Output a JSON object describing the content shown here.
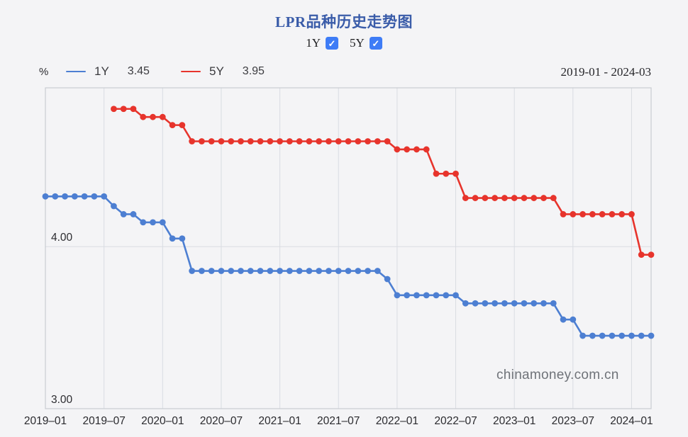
{
  "header": {
    "title": "LPR品种历史走势图",
    "series_toggles": [
      {
        "label": "1Y",
        "checked": true
      },
      {
        "label": "5Y",
        "checked": true
      }
    ]
  },
  "legend": {
    "unit": "%",
    "items": [
      {
        "name": "1Y",
        "value": "3.45",
        "color": "#4d7fd2"
      },
      {
        "name": "5Y",
        "value": "3.95",
        "color": "#e7342c"
      }
    ],
    "date_range": "2019-01 - 2024-03"
  },
  "watermark": "chinamoney.com.cn",
  "colors": {
    "background": "#f4f4f6",
    "plot_border": "#c8ccd2",
    "grid_line": "#d9dce2",
    "series_1y": "#4d7fd2",
    "series_5y": "#e7342c",
    "title": "#3a5ca9",
    "checkbox": "#3e7cf6",
    "axis_text": "#2a2a2e",
    "watermark_text": "#6f7379"
  },
  "chart_data": {
    "type": "line",
    "title": "LPR品种历史走势图",
    "unit": "%",
    "x_start": "2019-01",
    "x_end": "2024-03",
    "x_frequency": "monthly",
    "total_months": 63,
    "ylim": [
      3.0,
      4.98
    ],
    "grid": {
      "vertical_at_ticks": true,
      "horizontal_values": [
        4.0
      ]
    },
    "y_ticks": [
      {
        "value": 3.0,
        "label": "3.00"
      },
      {
        "value": 4.0,
        "label": "4.00"
      }
    ],
    "x_ticks": [
      {
        "index": 0,
        "label": "2019–01"
      },
      {
        "index": 6,
        "label": "2019–07"
      },
      {
        "index": 12,
        "label": "2020–01"
      },
      {
        "index": 18,
        "label": "2020–07"
      },
      {
        "index": 24,
        "label": "2021–01"
      },
      {
        "index": 30,
        "label": "2021–07"
      },
      {
        "index": 36,
        "label": "2022–01"
      },
      {
        "index": 42,
        "label": "2022–07"
      },
      {
        "index": 48,
        "label": "2023–01"
      },
      {
        "index": 54,
        "label": "2023–07"
      },
      {
        "index": 60,
        "label": "2024–01"
      }
    ],
    "series": [
      {
        "name": "1Y",
        "color": "#4d7fd2",
        "latest_value": 3.45,
        "start_index": 0,
        "values": [
          4.31,
          4.31,
          4.31,
          4.31,
          4.31,
          4.31,
          4.31,
          4.25,
          4.2,
          4.2,
          4.15,
          4.15,
          4.15,
          4.05,
          4.05,
          3.85,
          3.85,
          3.85,
          3.85,
          3.85,
          3.85,
          3.85,
          3.85,
          3.85,
          3.85,
          3.85,
          3.85,
          3.85,
          3.85,
          3.85,
          3.85,
          3.85,
          3.85,
          3.85,
          3.85,
          3.8,
          3.7,
          3.7,
          3.7,
          3.7,
          3.7,
          3.7,
          3.7,
          3.65,
          3.65,
          3.65,
          3.65,
          3.65,
          3.65,
          3.65,
          3.65,
          3.65,
          3.65,
          3.55,
          3.55,
          3.45,
          3.45,
          3.45,
          3.45,
          3.45,
          3.45,
          3.45,
          3.45
        ]
      },
      {
        "name": "5Y",
        "color": "#e7342c",
        "latest_value": 3.95,
        "start_index": 7,
        "values": [
          4.85,
          4.85,
          4.85,
          4.8,
          4.8,
          4.8,
          4.75,
          4.75,
          4.65,
          4.65,
          4.65,
          4.65,
          4.65,
          4.65,
          4.65,
          4.65,
          4.65,
          4.65,
          4.65,
          4.65,
          4.65,
          4.65,
          4.65,
          4.65,
          4.65,
          4.65,
          4.65,
          4.65,
          4.65,
          4.6,
          4.6,
          4.6,
          4.6,
          4.45,
          4.45,
          4.45,
          4.3,
          4.3,
          4.3,
          4.3,
          4.3,
          4.3,
          4.3,
          4.3,
          4.3,
          4.3,
          4.2,
          4.2,
          4.2,
          4.2,
          4.2,
          4.2,
          4.2,
          4.2,
          3.95,
          3.95
        ]
      }
    ]
  }
}
